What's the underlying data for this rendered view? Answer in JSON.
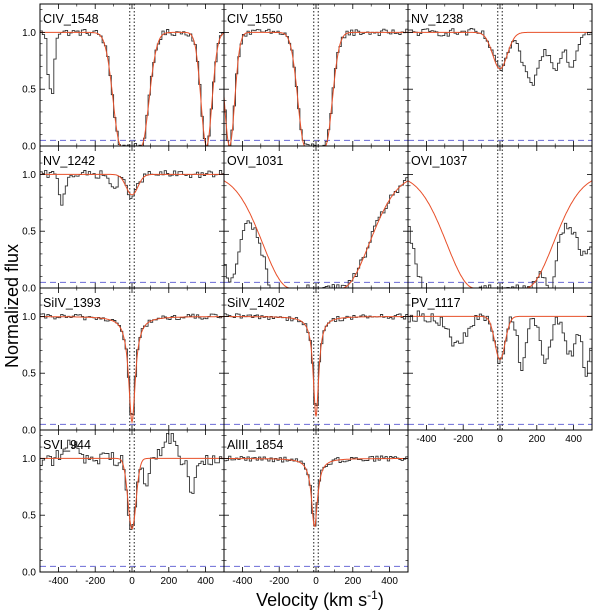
{
  "figure": {
    "ylabel": "Normalized flux",
    "xlabel_main": "Velocity (km s",
    "xlabel_sup": "-1",
    "xlabel_end": ")"
  },
  "chart_data": {
    "type": "line",
    "layout": "panel grid, 3 columns x 4 rows, panels share axes",
    "xlim": [
      -500,
      500
    ],
    "ylim": [
      0,
      1.25
    ],
    "x_ticks": [
      -400,
      -200,
      0,
      200,
      400
    ],
    "y_ticks": [
      0.0,
      0.5,
      1.0
    ],
    "y_tick_labels": [
      "0.0",
      "0.5",
      "1.0"
    ],
    "marker_lines_x": [
      -12,
      12
    ],
    "baseline_y": 0.05,
    "colors": {
      "data": "#333333",
      "model": "#e8502a",
      "baseline": "#6b6bd6",
      "marker": "#000000"
    },
    "series_legend": [
      {
        "role": "data",
        "style": "step histogram"
      },
      {
        "role": "model",
        "style": "smooth line"
      },
      {
        "role": "zero level",
        "style": "dashed line"
      }
    ],
    "panels": [
      {
        "label": "CIV_1548",
        "model_dips": [
          {
            "center": -5,
            "depth": 1.0,
            "width": 42,
            "shape": "saturated",
            "core": 55
          },
          {
            "center": 405,
            "depth": 1.0,
            "width": 30,
            "shape": "saturated",
            "core": 0
          }
        ],
        "features": [
          {
            "x": -435,
            "width": 12,
            "depth": 0.55
          },
          {
            "x": -455,
            "width": 8,
            "depth": 0.25
          }
        ],
        "noise": 0.03
      },
      {
        "label": "CIV_1550",
        "model_dips": [
          {
            "center": -5,
            "depth": 1.0,
            "width": 38,
            "shape": "saturated",
            "core": 55
          },
          {
            "center": -470,
            "depth": 1.0,
            "width": 28,
            "shape": "saturated",
            "core": 0
          }
        ],
        "features": [],
        "noise": 0.03
      },
      {
        "label": "NV_1238",
        "model_dips": [
          {
            "center": 0,
            "depth": 0.32,
            "width": 40,
            "shape": "gauss"
          }
        ],
        "features": [
          {
            "x": 170,
            "width": 45,
            "depth": 0.45
          },
          {
            "x": 300,
            "width": 30,
            "depth": 0.3
          },
          {
            "x": 390,
            "width": 25,
            "depth": 0.3
          }
        ],
        "noise": 0.035
      },
      {
        "label": "NV_1242",
        "model_dips": [
          {
            "center": 0,
            "depth": 0.18,
            "width": 32,
            "shape": "gauss"
          }
        ],
        "features": [
          {
            "x": -380,
            "width": 15,
            "depth": 0.25
          },
          {
            "x": -100,
            "width": 20,
            "depth": 0.12
          }
        ],
        "noise": 0.035
      },
      {
        "label": "OVI_1031",
        "model_dips": [
          {
            "center": 0,
            "depth": 1.0,
            "width": 150,
            "shape": "saturated",
            "core": 140
          }
        ],
        "features": [
          {
            "x": -470,
            "width": 50,
            "depth": 0.85
          },
          {
            "x": -200,
            "width": 60,
            "depth": 0.3
          }
        ],
        "noise": 0.04
      },
      {
        "label": "OVI_1037",
        "model_dips": [
          {
            "center": 0,
            "depth": 1.0,
            "width": 150,
            "shape": "saturated",
            "core": 140
          }
        ],
        "features": [
          {
            "x": -400,
            "width": 80,
            "depth": 0.85
          },
          {
            "x": -230,
            "width": 40,
            "depth": 0.6
          },
          {
            "x": 280,
            "width": 25,
            "depth": 0.35
          },
          {
            "x": 470,
            "width": 60,
            "depth": 0.6
          }
        ],
        "noise": 0.04
      },
      {
        "label": "SiIV_1393",
        "model_dips": [
          {
            "center": 0,
            "depth": 0.93,
            "width": 22,
            "shape": "lorentz"
          }
        ],
        "features": [],
        "noise": 0.025
      },
      {
        "label": "SiIV_1402",
        "model_dips": [
          {
            "center": 0,
            "depth": 0.88,
            "width": 18,
            "shape": "lorentz"
          }
        ],
        "features": [],
        "noise": 0.025
      },
      {
        "label": "PV_1117",
        "model_dips": [
          {
            "center": 0,
            "depth": 0.38,
            "width": 28,
            "shape": "gauss"
          }
        ],
        "features": [
          {
            "x": -230,
            "width": 50,
            "depth": 0.25
          },
          {
            "x": 120,
            "width": 20,
            "depth": 0.45
          },
          {
            "x": 250,
            "width": 25,
            "depth": 0.4
          },
          {
            "x": 380,
            "width": 30,
            "depth": 0.35
          },
          {
            "x": 470,
            "width": 20,
            "depth": 0.5
          }
        ],
        "noise": 0.05
      },
      {
        "label": "SVI_944",
        "model_dips": [
          {
            "center": 0,
            "depth": 0.62,
            "width": 22,
            "shape": "gauss"
          }
        ],
        "features": [
          {
            "x": -320,
            "width": 30,
            "depth": -0.15
          },
          {
            "x": 200,
            "width": 30,
            "depth": -0.2
          },
          {
            "x": 330,
            "width": 20,
            "depth": 0.3
          },
          {
            "x": 80,
            "width": 15,
            "depth": 0.25
          }
        ],
        "noise": 0.07
      },
      {
        "label": "AlIII_1854",
        "model_dips": [
          {
            "center": -8,
            "depth": 0.6,
            "width": 20,
            "shape": "lorentz"
          }
        ],
        "features": [],
        "noise": 0.025
      }
    ]
  }
}
